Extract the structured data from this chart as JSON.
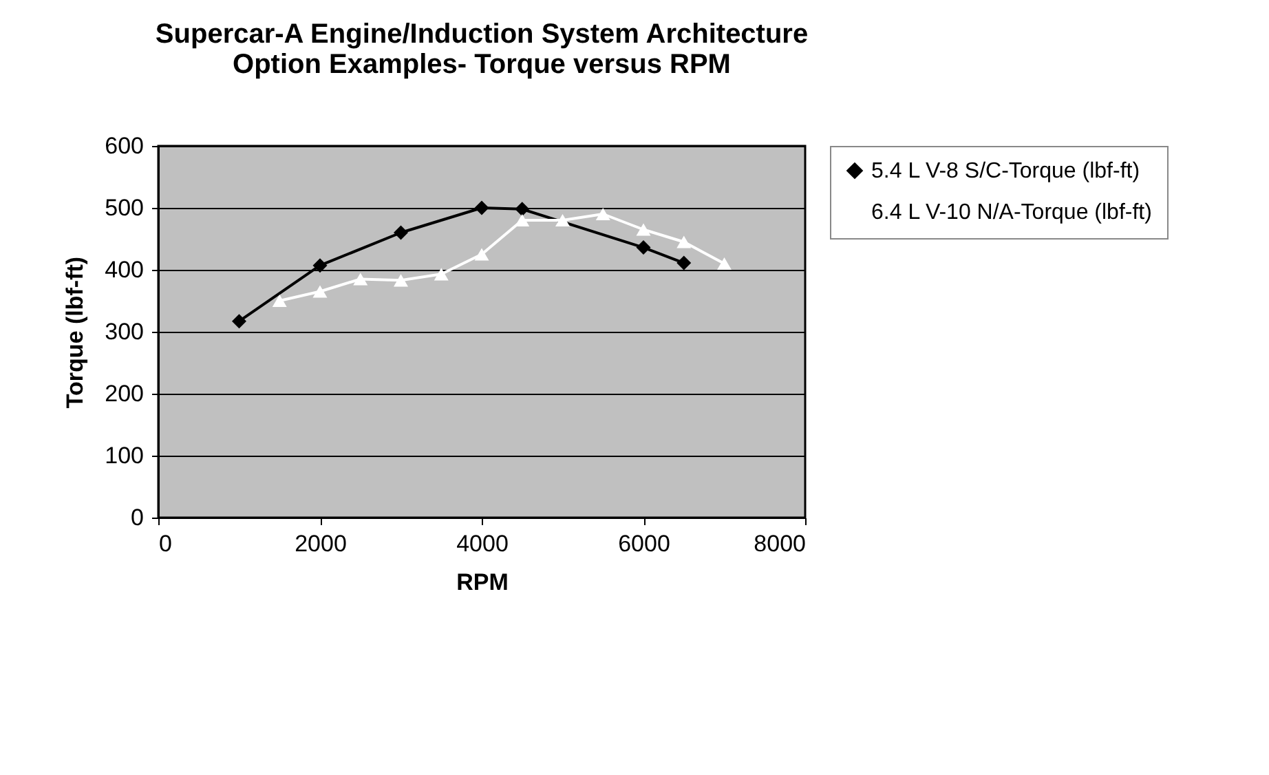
{
  "chart_data": {
    "type": "line",
    "title": "Supercar-A Engine/Induction System Architecture Option Examples- Torque versus RPM",
    "xlabel": "RPM",
    "ylabel": "Torque (lbf-ft)",
    "xlim": [
      0,
      8000
    ],
    "xticks": [
      0,
      2000,
      4000,
      6000,
      8000
    ],
    "ylim": [
      0,
      600
    ],
    "yticks": [
      0,
      100,
      200,
      300,
      400,
      500,
      600
    ],
    "grid": "y",
    "legend": "right",
    "series": [
      {
        "name": "5.4 L V-8 S/C-Torque (lbf-ft)",
        "color": "#000000",
        "marker": "diamond",
        "x": [
          1000,
          2000,
          3000,
          4000,
          4500,
          6000,
          6500
        ],
        "values": [
          317,
          407,
          460,
          500,
          498,
          436,
          411
        ]
      },
      {
        "name": "6.4 L V-10 N/A-Torque (lbf-ft)",
        "color": "#ffffff",
        "marker": "triangle",
        "x": [
          1500,
          2000,
          2500,
          3000,
          3500,
          4000,
          4500,
          5000,
          5500,
          6000,
          6500,
          7000
        ],
        "values": [
          350,
          365,
          385,
          383,
          393,
          425,
          480,
          480,
          490,
          465,
          445,
          410
        ]
      }
    ]
  }
}
